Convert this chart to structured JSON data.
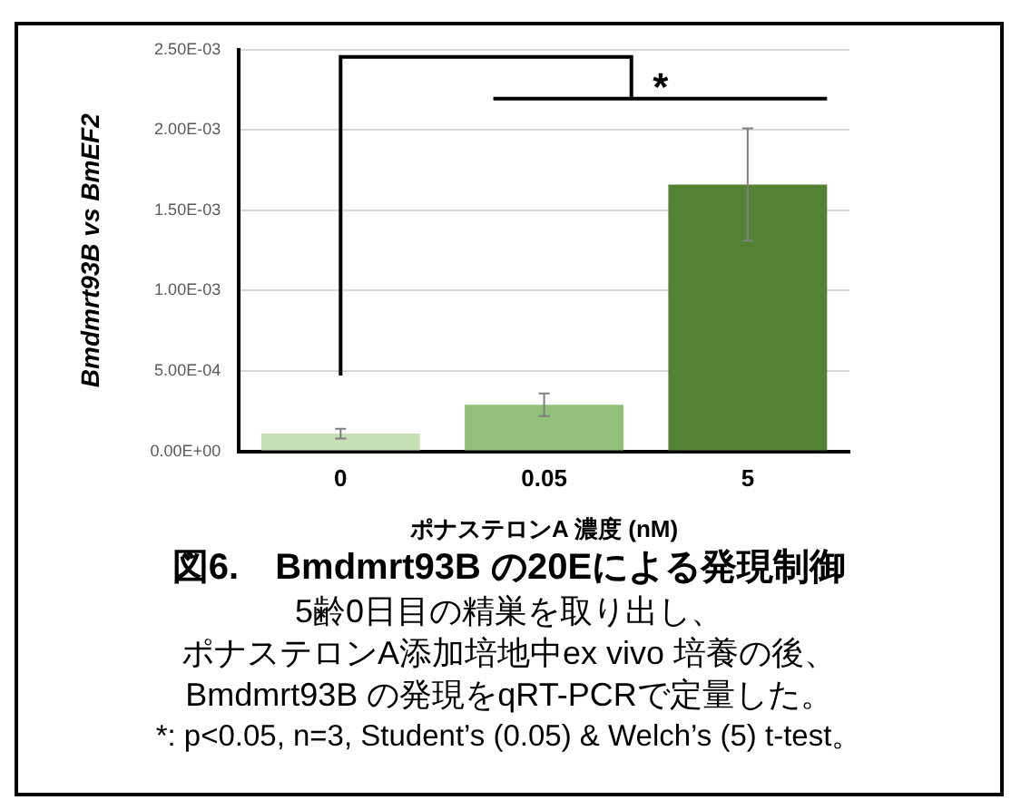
{
  "chart_data": {
    "type": "bar",
    "title": "図6.　Bmdmrt93B の20Eによる発現制御",
    "xlabel": "ポナステロンA 濃度 (nM)",
    "ylabel": "Bmdmrt93B vs BmEF2",
    "categories": [
      "0",
      "0.05",
      "5"
    ],
    "values": [
      0.00011,
      0.00029,
      0.00166
    ],
    "errors": [
      3e-05,
      7e-05,
      0.00035
    ],
    "colors": [
      "#c5e0b4",
      "#92c07a",
      "#548235"
    ],
    "ylim": [
      0,
      0.0025
    ],
    "yticks": [
      {
        "value": 0,
        "label": "0.00E+00"
      },
      {
        "value": 0.0005,
        "label": "5.00E-04"
      },
      {
        "value": 0.001,
        "label": "1.00E-03"
      },
      {
        "value": 0.0015,
        "label": "1.50E-03"
      },
      {
        "value": 0.002,
        "label": "2.00E-03"
      },
      {
        "value": 0.0025,
        "label": "2.50E-03"
      }
    ],
    "grid": "y",
    "legend": false,
    "annotations": [
      "*",
      "5齢0日目の精巣を取り出し、",
      "ポナステロンA添加培地中ex vivo 培養の後、",
      "Bmdmrt93B の発現をqRT-PCRで定量した。",
      "*: p<0.05, n=3, Student’s (0.05) & Welch’s (5) t-test。"
    ]
  }
}
